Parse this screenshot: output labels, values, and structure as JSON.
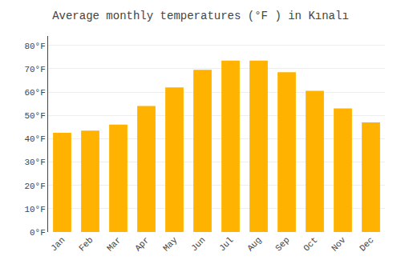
{
  "chart_data": {
    "type": "bar",
    "title": "Average monthly temperatures (°F ) in Kınalı",
    "categories": [
      "Jan",
      "Feb",
      "Mar",
      "Apr",
      "May",
      "Jun",
      "Jul",
      "Aug",
      "Sep",
      "Oct",
      "Nov",
      "Dec"
    ],
    "values": [
      42.5,
      43.5,
      46.0,
      54.0,
      62.0,
      69.5,
      73.5,
      73.5,
      68.5,
      60.5,
      53.0,
      47.0
    ],
    "color": "#FFB300",
    "ylim": [
      0,
      84
    ],
    "yticks": [
      {
        "value": 0,
        "label": "0°F"
      },
      {
        "value": 10,
        "label": "10°F"
      },
      {
        "value": 20,
        "label": "20°F"
      },
      {
        "value": 30,
        "label": "30°F"
      },
      {
        "value": 40,
        "label": "40°F"
      },
      {
        "value": 50,
        "label": "50°F"
      },
      {
        "value": 60,
        "label": "60°F"
      },
      {
        "value": 70,
        "label": "70°F"
      },
      {
        "value": 80,
        "label": "80°F"
      }
    ],
    "grid": true
  }
}
